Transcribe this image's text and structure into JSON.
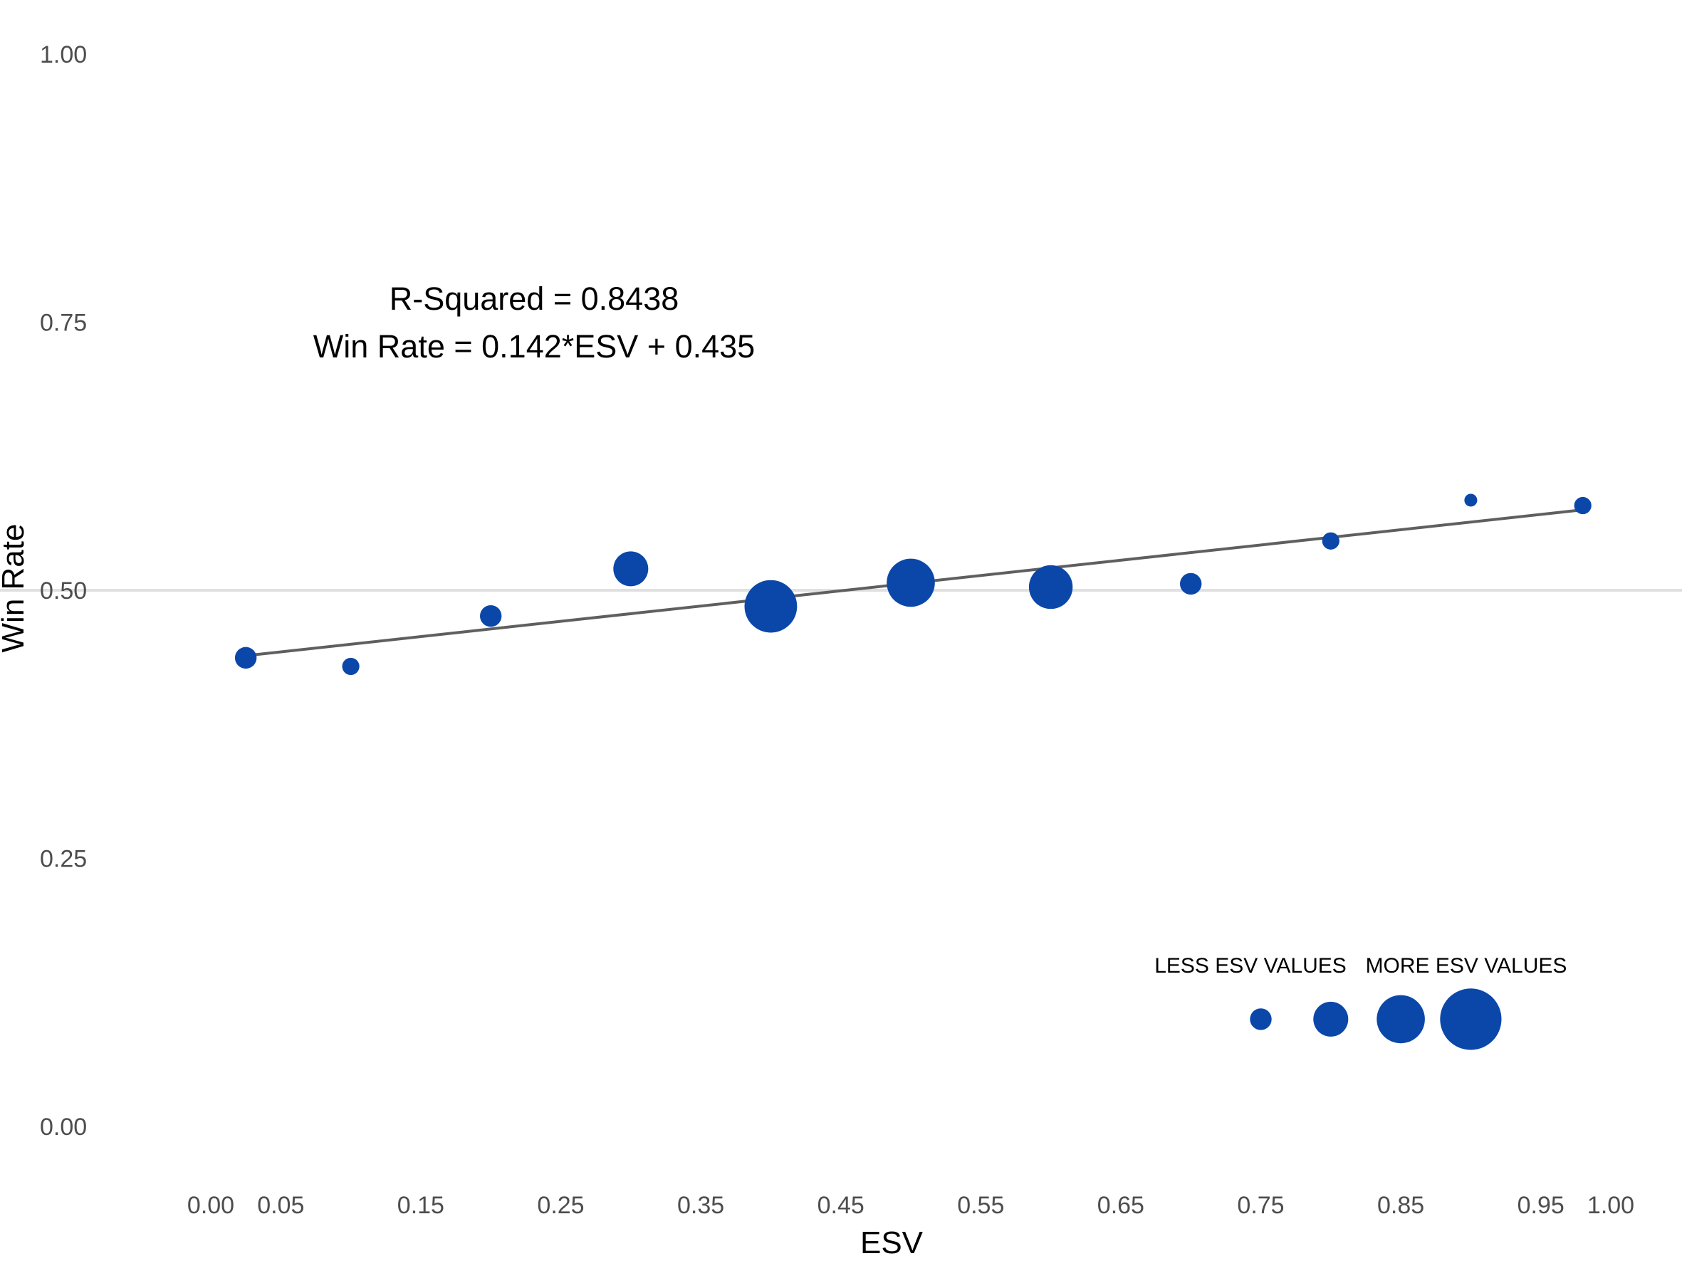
{
  "chart_data": {
    "type": "scatter",
    "title": "",
    "xlabel": "ESV",
    "ylabel": "Win Rate",
    "xlim": [
      -0.05,
      1.025
    ],
    "ylim": [
      0,
      1
    ],
    "x_ticks": [
      "0.00",
      "0.05",
      "0.15",
      "0.25",
      "0.35",
      "0.45",
      "0.55",
      "0.65",
      "0.75",
      "0.85",
      "0.95",
      "1.00"
    ],
    "x_tick_values": [
      0.0,
      0.05,
      0.15,
      0.25,
      0.35,
      0.45,
      0.55,
      0.65,
      0.75,
      0.85,
      0.95,
      1.0
    ],
    "y_ticks": [
      "0.00",
      "0.25",
      "0.50",
      "0.75",
      "1.00"
    ],
    "y_tick_values": [
      0,
      0.25,
      0.5,
      0.75,
      1.0
    ],
    "reference_line_y": 0.5,
    "point_color": "#0a47a9",
    "line_color": "#5f5f5f",
    "grid": false,
    "points": [
      {
        "x": 0.025,
        "y": 0.437,
        "size": 2
      },
      {
        "x": 0.1,
        "y": 0.429,
        "size": 1
      },
      {
        "x": 0.2,
        "y": 0.476,
        "size": 2
      },
      {
        "x": 0.3,
        "y": 0.52,
        "size": 5
      },
      {
        "x": 0.4,
        "y": 0.485,
        "size": 9
      },
      {
        "x": 0.5,
        "y": 0.507,
        "size": 8
      },
      {
        "x": 0.6,
        "y": 0.503,
        "size": 7
      },
      {
        "x": 0.7,
        "y": 0.506,
        "size": 2
      },
      {
        "x": 0.8,
        "y": 0.546,
        "size": 1
      },
      {
        "x": 0.9,
        "y": 0.584,
        "size": 0
      },
      {
        "x": 0.98,
        "y": 0.579,
        "size": 1
      }
    ],
    "fit_line": {
      "x": [
        0.025,
        0.98
      ],
      "y": [
        0.439,
        0.575
      ]
    },
    "annotations": {
      "r_squared": "R-Squared = 0.8438",
      "equation": "Win Rate = 0.142*ESV  + 0.435"
    },
    "size_legend": {
      "less_label": "LESS ESV VALUES",
      "more_label": "MORE ESV VALUES",
      "y": 0.1,
      "items": [
        {
          "x": 0.75,
          "size": 2
        },
        {
          "x": 0.8,
          "size": 5
        },
        {
          "x": 0.85,
          "size": 8
        },
        {
          "x": 0.9,
          "size": 11
        }
      ]
    }
  }
}
